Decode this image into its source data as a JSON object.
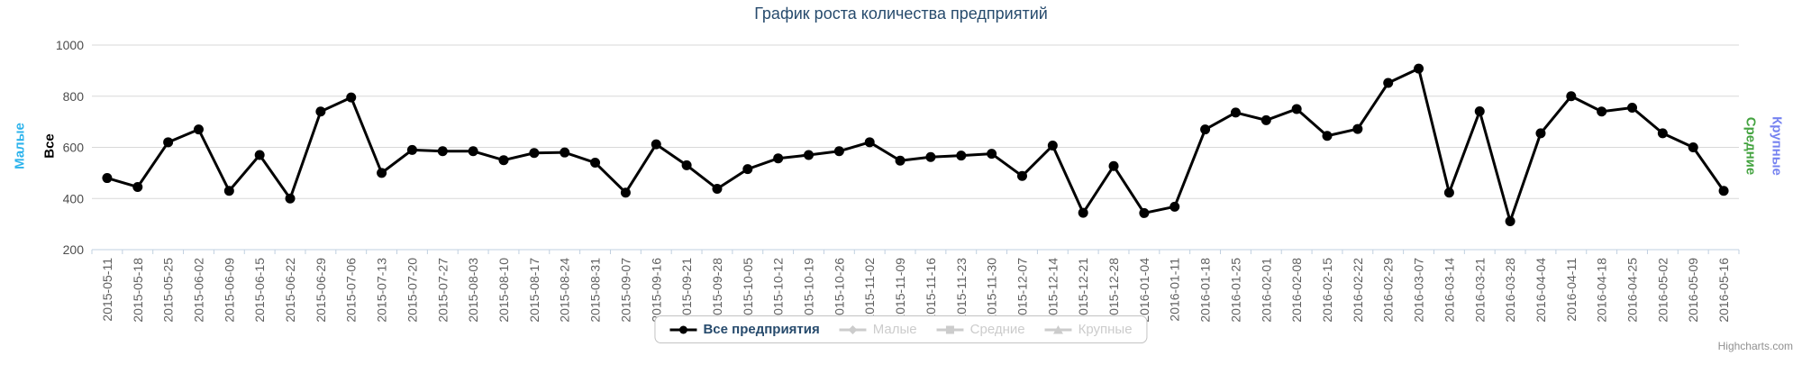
{
  "header": {
    "title": "График роста количества предприятий"
  },
  "axis_titles": {
    "left_outer": {
      "label": "Малые",
      "color": "#2cb3ec"
    },
    "left_inner": {
      "label": "Все",
      "color": "#000000"
    },
    "right_inner": {
      "label": "Средние",
      "color": "#44a340"
    },
    "right_outer": {
      "label": "Крупные",
      "color": "#7582f0"
    }
  },
  "chart_data": {
    "type": "line",
    "title": "График роста количества предприятий",
    "xlabel": "",
    "ylabel": "Все",
    "ylim": [
      200,
      1000
    ],
    "yticks": [
      200,
      400,
      600,
      800,
      1000
    ],
    "grid": true,
    "legend_position": "bottom-center",
    "colors": {
      "series": "#000000",
      "gridline": "#d8d8d8",
      "axis_line": "#c0d0e0",
      "x_labels": "#606060",
      "y_labels": "#4d4d4d"
    },
    "categories": [
      "2015-05-11",
      "2015-05-18",
      "2015-05-25",
      "2015-06-02",
      "2015-06-09",
      "2015-06-15",
      "2015-06-22",
      "2015-06-29",
      "2015-07-06",
      "2015-07-13",
      "2015-07-20",
      "2015-07-27",
      "2015-08-03",
      "2015-08-10",
      "2015-08-17",
      "2015-08-24",
      "2015-08-31",
      "2015-09-07",
      "2015-09-16",
      "2015-09-21",
      "2015-09-28",
      "2015-10-05",
      "2015-10-12",
      "2015-10-19",
      "2015-10-26",
      "2015-11-02",
      "2015-11-09",
      "2015-11-16",
      "2015-11-23",
      "2015-11-30",
      "2015-12-07",
      "2015-12-14",
      "2015-12-21",
      "2015-12-28",
      "2016-01-04",
      "2016-01-11",
      "2016-01-18",
      "2016-01-25",
      "2016-02-01",
      "2016-02-08",
      "2016-02-15",
      "2016-02-22",
      "2016-02-29",
      "2016-03-07",
      "2016-03-14",
      "2016-03-21",
      "2016-03-28",
      "2016-04-04",
      "2016-04-11",
      "2016-04-18",
      "2016-04-25",
      "2016-05-02",
      "2016-05-09",
      "2016-05-16"
    ],
    "series": [
      {
        "name": "Все предприятия",
        "color": "#000000",
        "marker": "circle",
        "visible": true,
        "values": [
          480,
          445,
          620,
          670,
          430,
          570,
          400,
          740,
          795,
          500,
          590,
          585,
          585,
          550,
          578,
          580,
          540,
          423,
          612,
          530,
          438,
          515,
          557,
          570,
          585,
          620,
          548,
          562,
          568,
          575,
          488,
          607,
          344,
          527,
          343,
          368,
          670,
          736,
          706,
          750,
          645,
          672,
          852,
          908,
          423,
          741,
          311,
          655,
          800,
          740,
          755,
          655,
          600,
          430
        ]
      },
      {
        "name": "Малые",
        "marker": "diamond",
        "visible": false,
        "values": []
      },
      {
        "name": "Средние",
        "marker": "square",
        "visible": false,
        "values": []
      },
      {
        "name": "Крупные",
        "marker": "triangle",
        "visible": false,
        "values": []
      }
    ]
  },
  "legend": {
    "items": [
      {
        "label": "Все предприятия",
        "enabled": true
      },
      {
        "label": "Малые",
        "enabled": false
      },
      {
        "label": "Средние",
        "enabled": false
      },
      {
        "label": "Крупные",
        "enabled": false
      }
    ]
  },
  "credit": {
    "label": "Highcharts.com"
  }
}
